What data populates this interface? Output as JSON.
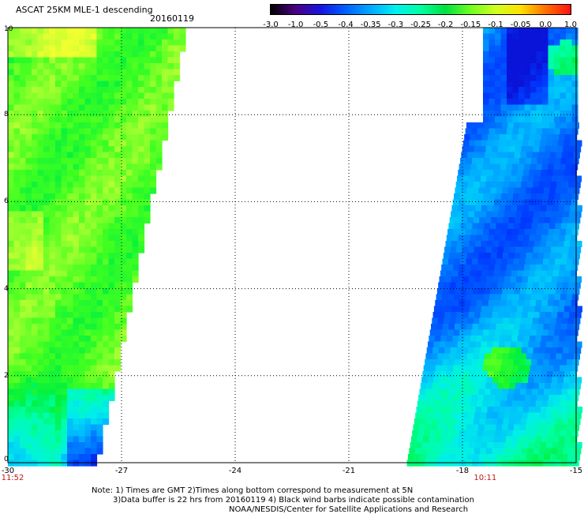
{
  "header": {
    "title": "ASCAT 25KM MLE-1 descending",
    "date": "20160119"
  },
  "colorbar": {
    "labels": [
      "-3.0",
      "-1.0",
      "-0.5",
      "-0.4",
      "-0.35",
      "-0.3",
      "-0.25",
      "-0.2",
      "-0.15",
      "-0.1",
      "-0.05",
      "0.0",
      "1.0"
    ],
    "colors": [
      "#000000",
      "#4b0082",
      "#1515e0",
      "#0060ff",
      "#00a8ff",
      "#00f0f0",
      "#00ffa0",
      "#00e040",
      "#70ff20",
      "#d0ff20",
      "#ffe000",
      "#ff7000",
      "#ff1010"
    ]
  },
  "map": {
    "lon_range": [
      -30,
      -15
    ],
    "lat_range": [
      0,
      10
    ],
    "x_ticks": [
      "-30",
      "-27",
      "-24",
      "-21",
      "-18",
      "-15"
    ],
    "y_ticks": [
      "0",
      "2",
      "4",
      "6",
      "8",
      "10"
    ],
    "times": [
      {
        "label": "11:52",
        "lon": -30
      },
      {
        "label": "10:11",
        "lon": -17.4
      }
    ]
  },
  "notes": {
    "line1": "Note: 1) Times are GMT 2)Times along bottom correspond to measurement at 5N",
    "line2": "3)Data buffer is 22 hrs from 20160119 4) Black wind barbs indicate possible contamination",
    "line3": "NOAA/NESDIS/Center for Satellite Applications and Research"
  }
}
